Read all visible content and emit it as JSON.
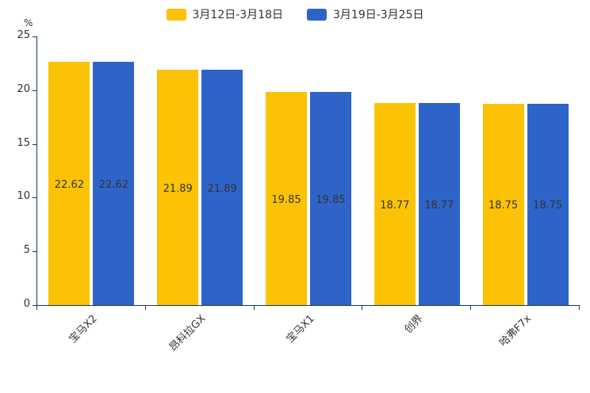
{
  "chart_data": {
    "type": "bar",
    "title": "",
    "unit_label": "%",
    "categories": [
      "宝马X2",
      "昂科拉GX",
      "宝马X1",
      "创界",
      "哈弗F7x"
    ],
    "series": [
      {
        "name": "3月12日-3月18日",
        "color": "#fcc306",
        "values": [
          22.62,
          21.89,
          19.85,
          18.77,
          18.75
        ]
      },
      {
        "name": "3月19日-3月25日",
        "color": "#2e64c8",
        "values": [
          22.62,
          21.89,
          19.85,
          18.77,
          18.75
        ]
      }
    ],
    "ylim": [
      0,
      25
    ],
    "yticks": [
      0,
      5,
      10,
      15,
      20,
      25
    ],
    "legend_position": "top",
    "grid": false,
    "value_labels": true,
    "axis_color": "#17375e",
    "value_label_color": "#333333"
  }
}
